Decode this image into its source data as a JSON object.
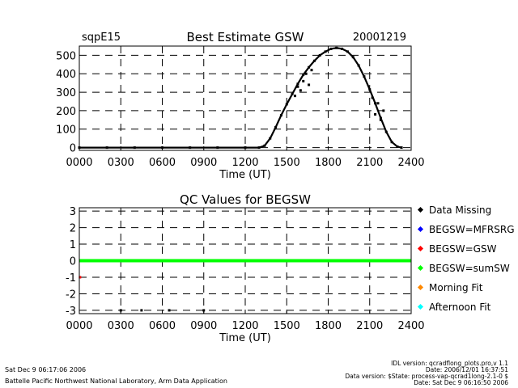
{
  "footer": {
    "left_date": "Sat Dec  9 06:17:06 2006",
    "left_org": "Battelle Pacific Northwest National Laboratory, Arm Data Application",
    "right_line1": "IDL version: qcradflong_plots.pro,v 1.1",
    "right_line2": "Date: 2006/12/01 16:37:51",
    "right_line3": "Data version: $State: process-vap-qcrad1long-2.1-0 $",
    "right_line4": "Date: Sat Dec  9 06:16:50 2006"
  },
  "chart_data": [
    {
      "type": "scatter",
      "title": "Best Estimate GSW",
      "site_label": "sqpE15",
      "date_label": "20001219",
      "xlabel": "Time (UT)",
      "ylabel": "",
      "xlim": [
        0,
        2400
      ],
      "ylim": [
        -15,
        550
      ],
      "x_ticks": [
        0,
        300,
        600,
        900,
        1200,
        1500,
        1800,
        2100,
        2400
      ],
      "x_tick_labels": [
        "0000",
        "0300",
        "0600",
        "0900",
        "1200",
        "1500",
        "1800",
        "2100",
        "2400"
      ],
      "y_ticks": [
        0,
        100,
        200,
        300,
        400,
        500
      ],
      "y_tick_labels": [
        "0",
        "100",
        "200",
        "300",
        "400",
        "500"
      ],
      "grid": true,
      "series": [
        {
          "color": "#000000",
          "x": [
            0,
            200,
            400,
            600,
            800,
            1000,
            1200,
            1300,
            1340,
            1380,
            1420,
            1460,
            1500,
            1540,
            1580,
            1620,
            1660,
            1700,
            1740,
            1780,
            1820,
            1860,
            1900,
            1940,
            1980,
            2020,
            2060,
            2100,
            2140,
            2180,
            2220,
            2260,
            2300,
            2330
          ],
          "y": [
            0,
            0,
            0,
            0,
            0,
            0,
            0,
            0,
            10,
            50,
            110,
            175,
            235,
            290,
            345,
            395,
            435,
            470,
            500,
            520,
            535,
            540,
            535,
            520,
            490,
            445,
            385,
            315,
            240,
            160,
            85,
            30,
            5,
            0
          ]
        },
        {
          "color": "#000000",
          "x": [
            1560,
            1580,
            1600,
            1620,
            1640,
            1660,
            1680,
            2120,
            2140,
            2160,
            2180,
            2200
          ],
          "y": [
            280,
            330,
            310,
            360,
            400,
            340,
            420,
            270,
            180,
            240,
            150,
            200
          ]
        }
      ]
    },
    {
      "type": "scatter",
      "title": "QC Values for BEGSW",
      "xlabel": "Time (UT)",
      "ylabel": "",
      "xlim": [
        0,
        2400
      ],
      "ylim": [
        -3.2,
        3.2
      ],
      "x_ticks": [
        0,
        300,
        600,
        900,
        1200,
        1500,
        1800,
        2100,
        2400
      ],
      "x_tick_labels": [
        "0000",
        "0300",
        "0600",
        "0900",
        "1200",
        "1500",
        "1800",
        "2100",
        "2400"
      ],
      "y_ticks": [
        -3,
        -2,
        -1,
        0,
        1,
        2,
        3
      ],
      "y_tick_labels": [
        "-3",
        "-2",
        "-1",
        "0",
        "1",
        "2",
        "3"
      ],
      "grid": true,
      "legend_position": "right",
      "series": [
        {
          "name": "Data Missing",
          "color": "#000000",
          "x": [
            300,
            450,
            650,
            900
          ],
          "y": [
            -3,
            -3,
            -3,
            -3
          ]
        },
        {
          "name": "BEGSW=MFRSRG",
          "color": "#0000ff",
          "x": [],
          "y": []
        },
        {
          "name": "BEGSW=GSW",
          "color": "#ff0000",
          "x": [
            5
          ],
          "y": [
            -1
          ]
        },
        {
          "name": "BEGSW=sumSW",
          "color": "#00ff00",
          "x": [
            0,
            2400
          ],
          "y": [
            0,
            0
          ]
        },
        {
          "name": "Morning Fit",
          "color": "#ff8800",
          "x": [],
          "y": []
        },
        {
          "name": "Afternoon Fit",
          "color": "#00ffff",
          "x": [],
          "y": []
        }
      ]
    }
  ]
}
